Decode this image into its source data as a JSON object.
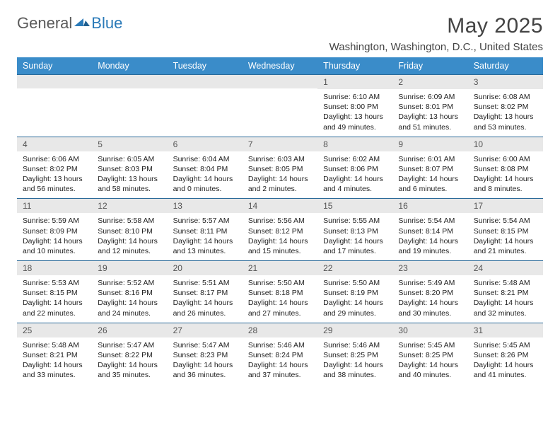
{
  "logo": {
    "general": "General",
    "blue": "Blue"
  },
  "title": "May 2025",
  "location": "Washington, Washington, D.C., United States",
  "colors": {
    "header_bg": "#3a8cc9",
    "header_border": "#2a6a99",
    "band_bg": "#e8e8e8",
    "text": "#222222",
    "title_text": "#444444",
    "logo_gray": "#5a5a5a",
    "logo_blue": "#2a7ab8"
  },
  "day_headers": [
    "Sunday",
    "Monday",
    "Tuesday",
    "Wednesday",
    "Thursday",
    "Friday",
    "Saturday"
  ],
  "weeks": [
    [
      null,
      null,
      null,
      null,
      {
        "n": "1",
        "sr": "6:10 AM",
        "ss": "8:00 PM",
        "dl": "13 hours and 49 minutes."
      },
      {
        "n": "2",
        "sr": "6:09 AM",
        "ss": "8:01 PM",
        "dl": "13 hours and 51 minutes."
      },
      {
        "n": "3",
        "sr": "6:08 AM",
        "ss": "8:02 PM",
        "dl": "13 hours and 53 minutes."
      }
    ],
    [
      {
        "n": "4",
        "sr": "6:06 AM",
        "ss": "8:02 PM",
        "dl": "13 hours and 56 minutes."
      },
      {
        "n": "5",
        "sr": "6:05 AM",
        "ss": "8:03 PM",
        "dl": "13 hours and 58 minutes."
      },
      {
        "n": "6",
        "sr": "6:04 AM",
        "ss": "8:04 PM",
        "dl": "14 hours and 0 minutes."
      },
      {
        "n": "7",
        "sr": "6:03 AM",
        "ss": "8:05 PM",
        "dl": "14 hours and 2 minutes."
      },
      {
        "n": "8",
        "sr": "6:02 AM",
        "ss": "8:06 PM",
        "dl": "14 hours and 4 minutes."
      },
      {
        "n": "9",
        "sr": "6:01 AM",
        "ss": "8:07 PM",
        "dl": "14 hours and 6 minutes."
      },
      {
        "n": "10",
        "sr": "6:00 AM",
        "ss": "8:08 PM",
        "dl": "14 hours and 8 minutes."
      }
    ],
    [
      {
        "n": "11",
        "sr": "5:59 AM",
        "ss": "8:09 PM",
        "dl": "14 hours and 10 minutes."
      },
      {
        "n": "12",
        "sr": "5:58 AM",
        "ss": "8:10 PM",
        "dl": "14 hours and 12 minutes."
      },
      {
        "n": "13",
        "sr": "5:57 AM",
        "ss": "8:11 PM",
        "dl": "14 hours and 13 minutes."
      },
      {
        "n": "14",
        "sr": "5:56 AM",
        "ss": "8:12 PM",
        "dl": "14 hours and 15 minutes."
      },
      {
        "n": "15",
        "sr": "5:55 AM",
        "ss": "8:13 PM",
        "dl": "14 hours and 17 minutes."
      },
      {
        "n": "16",
        "sr": "5:54 AM",
        "ss": "8:14 PM",
        "dl": "14 hours and 19 minutes."
      },
      {
        "n": "17",
        "sr": "5:54 AM",
        "ss": "8:15 PM",
        "dl": "14 hours and 21 minutes."
      }
    ],
    [
      {
        "n": "18",
        "sr": "5:53 AM",
        "ss": "8:15 PM",
        "dl": "14 hours and 22 minutes."
      },
      {
        "n": "19",
        "sr": "5:52 AM",
        "ss": "8:16 PM",
        "dl": "14 hours and 24 minutes."
      },
      {
        "n": "20",
        "sr": "5:51 AM",
        "ss": "8:17 PM",
        "dl": "14 hours and 26 minutes."
      },
      {
        "n": "21",
        "sr": "5:50 AM",
        "ss": "8:18 PM",
        "dl": "14 hours and 27 minutes."
      },
      {
        "n": "22",
        "sr": "5:50 AM",
        "ss": "8:19 PM",
        "dl": "14 hours and 29 minutes."
      },
      {
        "n": "23",
        "sr": "5:49 AM",
        "ss": "8:20 PM",
        "dl": "14 hours and 30 minutes."
      },
      {
        "n": "24",
        "sr": "5:48 AM",
        "ss": "8:21 PM",
        "dl": "14 hours and 32 minutes."
      }
    ],
    [
      {
        "n": "25",
        "sr": "5:48 AM",
        "ss": "8:21 PM",
        "dl": "14 hours and 33 minutes."
      },
      {
        "n": "26",
        "sr": "5:47 AM",
        "ss": "8:22 PM",
        "dl": "14 hours and 35 minutes."
      },
      {
        "n": "27",
        "sr": "5:47 AM",
        "ss": "8:23 PM",
        "dl": "14 hours and 36 minutes."
      },
      {
        "n": "28",
        "sr": "5:46 AM",
        "ss": "8:24 PM",
        "dl": "14 hours and 37 minutes."
      },
      {
        "n": "29",
        "sr": "5:46 AM",
        "ss": "8:25 PM",
        "dl": "14 hours and 38 minutes."
      },
      {
        "n": "30",
        "sr": "5:45 AM",
        "ss": "8:25 PM",
        "dl": "14 hours and 40 minutes."
      },
      {
        "n": "31",
        "sr": "5:45 AM",
        "ss": "8:26 PM",
        "dl": "14 hours and 41 minutes."
      }
    ]
  ],
  "labels": {
    "sunrise": "Sunrise: ",
    "sunset": "Sunset: ",
    "daylight": "Daylight: "
  }
}
